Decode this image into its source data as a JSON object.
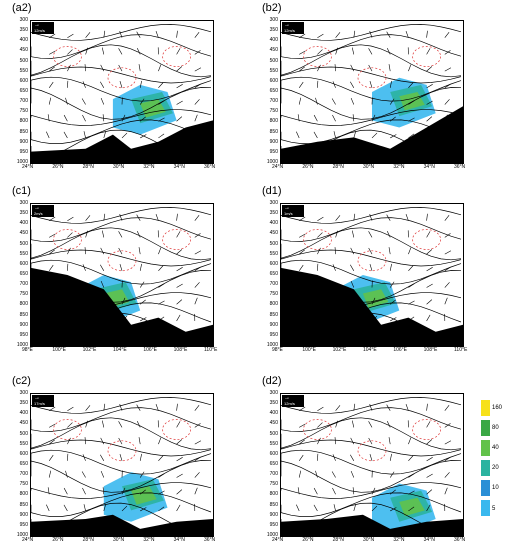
{
  "panels": [
    {
      "id": "a2",
      "label": "(a2)",
      "ref": "12m/s",
      "xticks": [
        "24°N",
        "26°N",
        "28°N",
        "30°N",
        "32°N",
        "34°N",
        "36°N"
      ],
      "yticks": [
        "300",
        "350",
        "400",
        "450",
        "500",
        "550",
        "600",
        "650",
        "700",
        "750",
        "800",
        "850",
        "900",
        "950",
        "1000"
      ]
    },
    {
      "id": "b2",
      "label": "(b2)",
      "ref": "12m/s",
      "xticks": [
        "24°N",
        "26°N",
        "28°N",
        "30°N",
        "32°N",
        "34°N",
        "36°N"
      ],
      "yticks": [
        "300",
        "350",
        "400",
        "450",
        "500",
        "550",
        "600",
        "650",
        "700",
        "750",
        "800",
        "850",
        "900",
        "950",
        "1000"
      ]
    },
    {
      "id": "c1",
      "label": "(c1)",
      "ref": "2m/s",
      "xticks": [
        "98°E",
        "100°E",
        "102°E",
        "104°E",
        "106°E",
        "108°E",
        "110°E"
      ],
      "yticks": [
        "300",
        "350",
        "400",
        "450",
        "500",
        "550",
        "600",
        "650",
        "700",
        "750",
        "800",
        "850",
        "900",
        "950",
        "1000"
      ]
    },
    {
      "id": "d1",
      "label": "(d1)",
      "ref": "1m/s",
      "xticks": [
        "98°E",
        "100°E",
        "102°E",
        "104°E",
        "106°E",
        "108°E",
        "110°E"
      ],
      "yticks": [
        "300",
        "350",
        "400",
        "450",
        "500",
        "550",
        "600",
        "650",
        "700",
        "750",
        "800",
        "850",
        "900",
        "950",
        "1000"
      ]
    },
    {
      "id": "c2",
      "label": "(c2)",
      "ref": "17m/s",
      "xticks": [
        "24°N",
        "26°N",
        "28°N",
        "30°N",
        "32°N",
        "34°N",
        "36°N"
      ],
      "yticks": [
        "300",
        "350",
        "400",
        "450",
        "500",
        "550",
        "600",
        "650",
        "700",
        "750",
        "800",
        "850",
        "900",
        "950",
        "1000"
      ]
    },
    {
      "id": "d2",
      "label": "(d2)",
      "ref": "12m/s",
      "xticks": [
        "24°N",
        "26°N",
        "28°N",
        "30°N",
        "32°N",
        "34°N",
        "36°N"
      ],
      "yticks": [
        "300",
        "350",
        "400",
        "450",
        "500",
        "550",
        "600",
        "650",
        "700",
        "750",
        "800",
        "850",
        "900",
        "950",
        "1000"
      ]
    }
  ],
  "legend": {
    "labels": [
      "160",
      "80",
      "40",
      "20",
      "10",
      "5"
    ],
    "colors": [
      "#f7e11a",
      "#3aa845",
      "#62c24a",
      "#2bb3a0",
      "#2b8fd6",
      "#3ab8ee"
    ]
  }
}
